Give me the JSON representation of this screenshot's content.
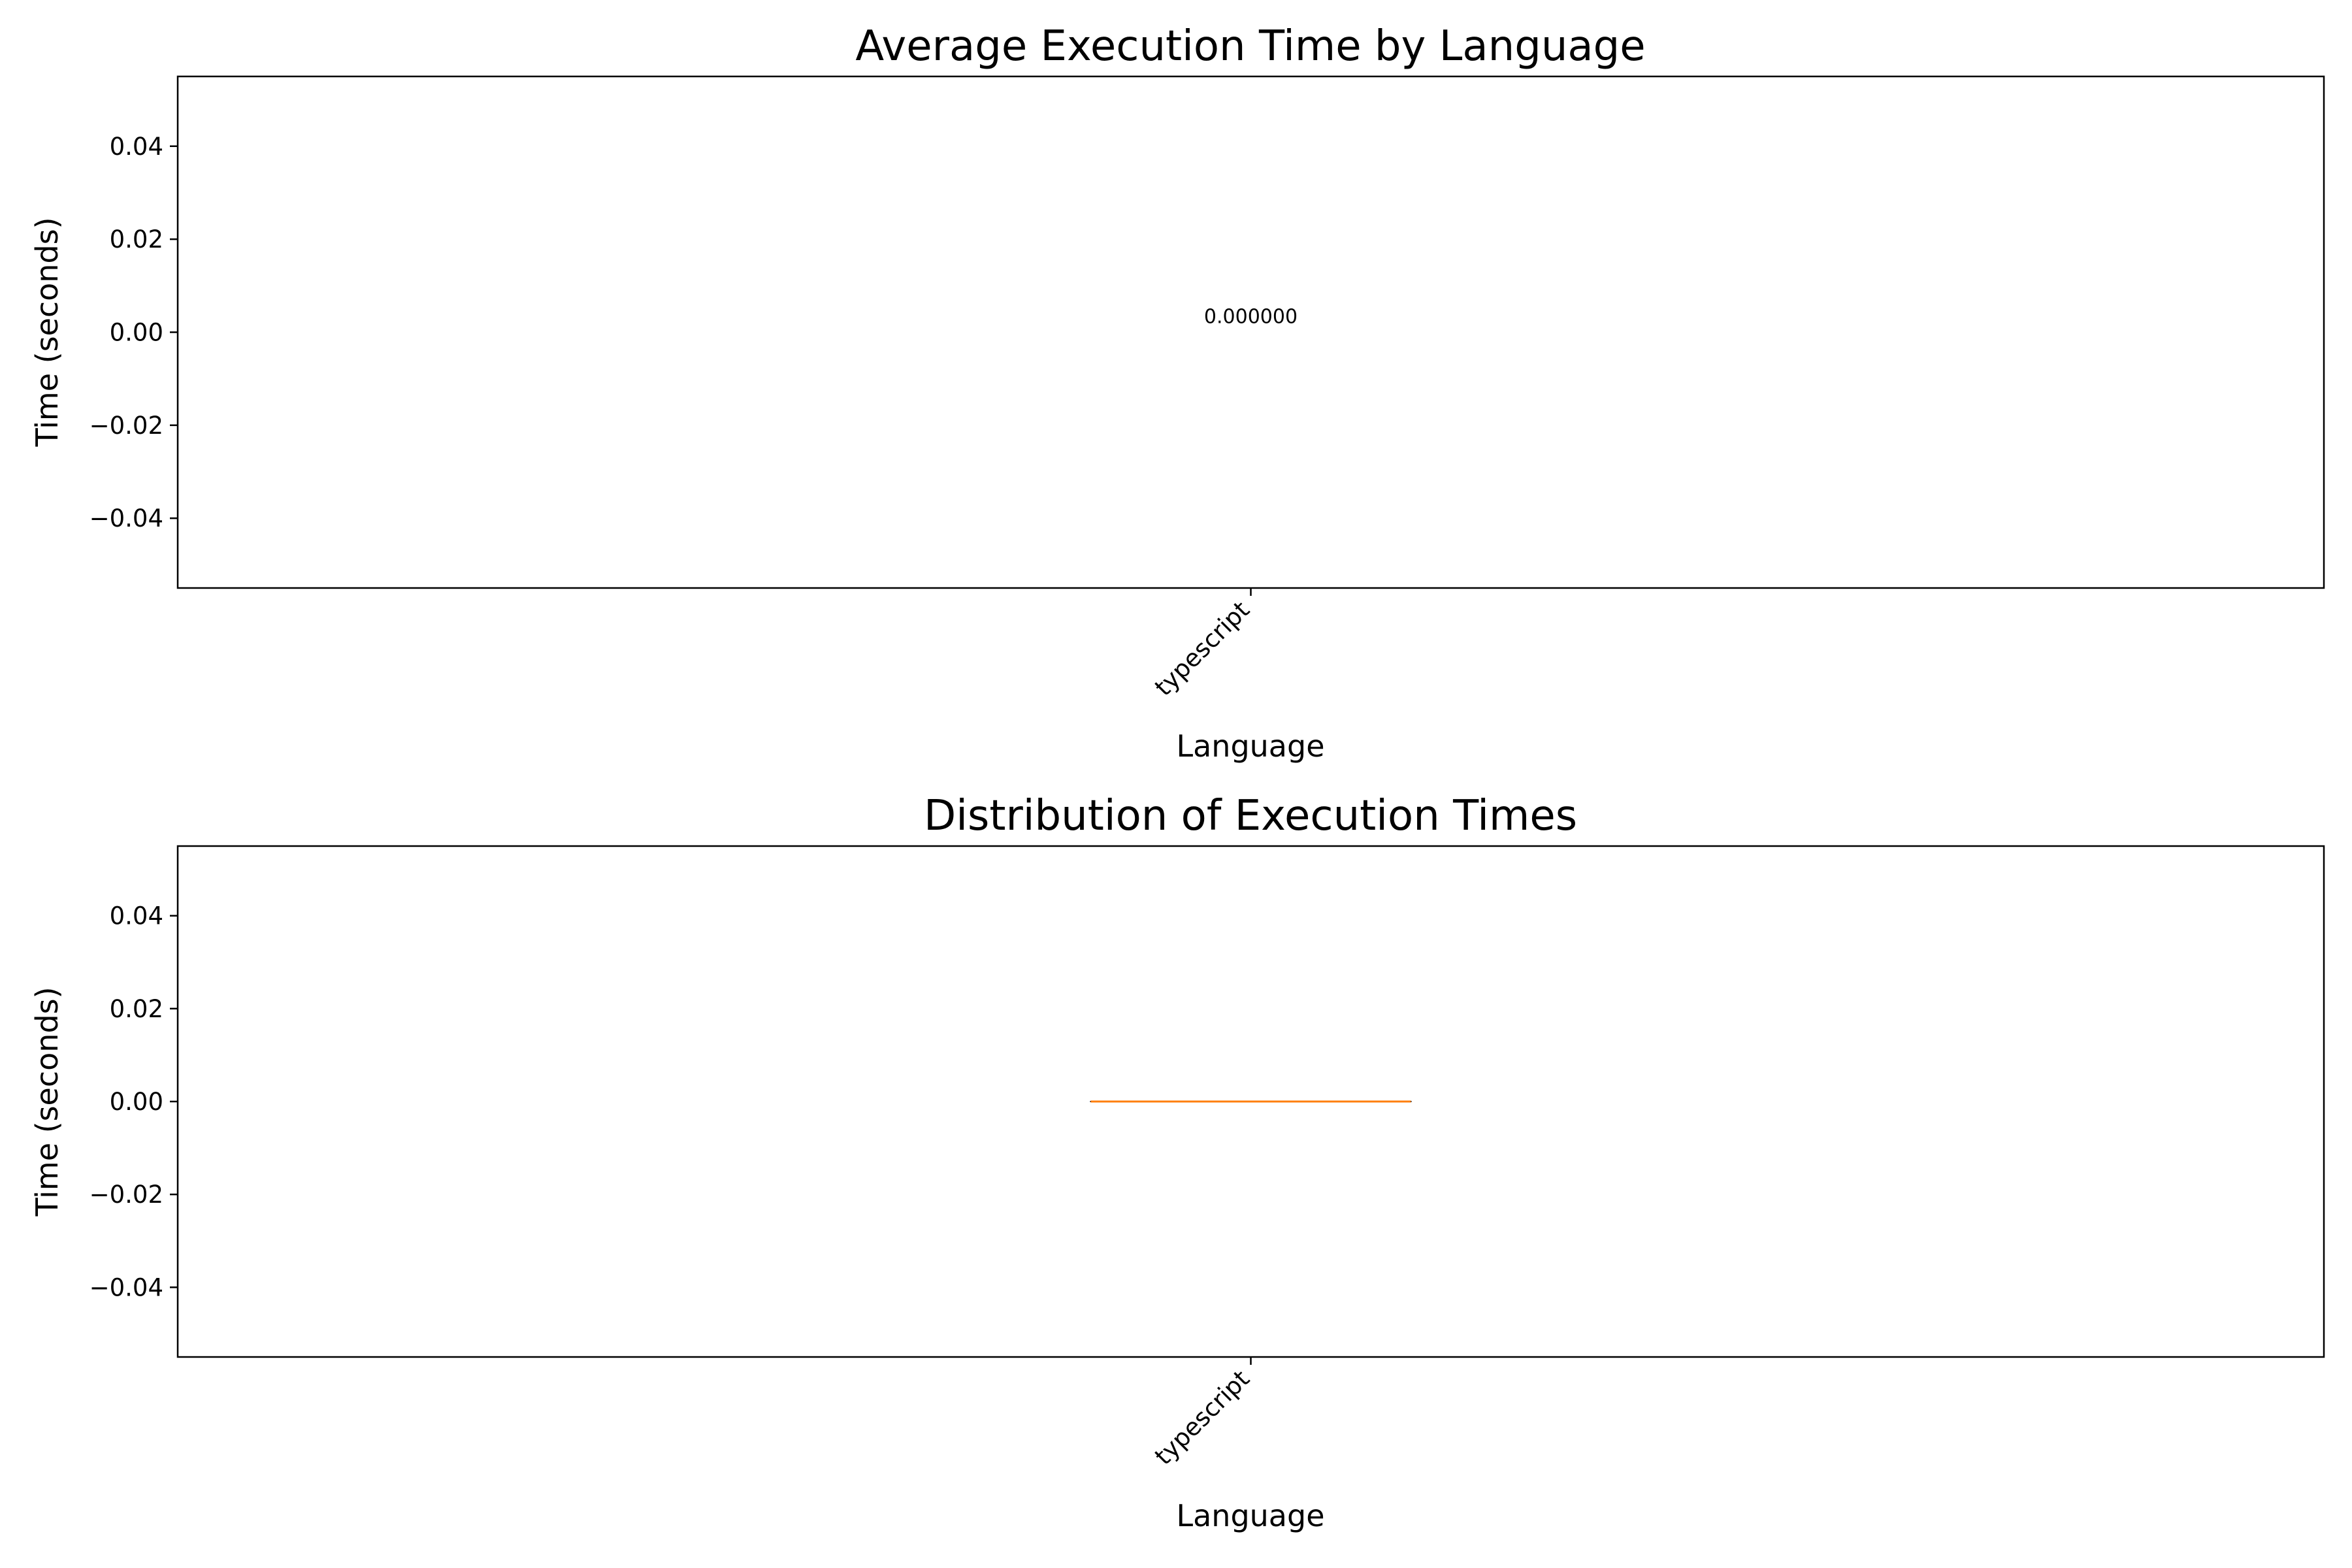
{
  "chart_data": [
    {
      "type": "bar",
      "title": "Average Execution Time by Language",
      "xlabel": "Language",
      "ylabel": "Time (seconds)",
      "categories": [
        "typescript"
      ],
      "values": [
        0.0
      ],
      "value_labels": [
        "0.000000"
      ],
      "ylim": [
        -0.055,
        0.055
      ],
      "yticks": [
        -0.04,
        -0.02,
        0.0,
        0.02,
        0.04
      ],
      "ytick_labels": [
        "−0.04",
        "−0.02",
        "0.00",
        "0.02",
        "0.04"
      ],
      "grid": false
    },
    {
      "type": "box",
      "title": "Distribution of Execution Times",
      "xlabel": "Language",
      "ylabel": "Time (seconds)",
      "categories": [
        "typescript"
      ],
      "boxes": [
        {
          "category": "typescript",
          "min": 0.0,
          "q1": 0.0,
          "median": 0.0,
          "q3": 0.0,
          "max": 0.0
        }
      ],
      "median_color": "#ff7f0e",
      "ylim": [
        -0.055,
        0.055
      ],
      "yticks": [
        -0.04,
        -0.02,
        0.0,
        0.02,
        0.04
      ],
      "ytick_labels": [
        "−0.04",
        "−0.02",
        "0.00",
        "0.02",
        "0.04"
      ],
      "grid": false
    }
  ]
}
